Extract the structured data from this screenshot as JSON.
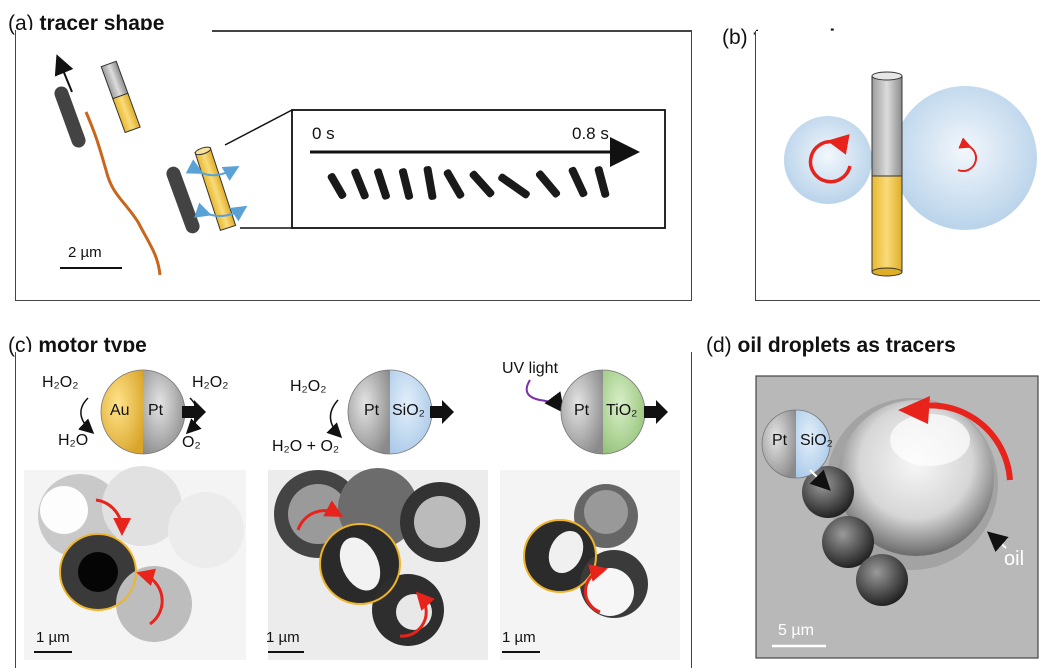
{
  "panel_a": {
    "letter": "(a)",
    "title": "tracer shape",
    "inset": {
      "start_time": "0 s",
      "end_time": "0.8 s"
    },
    "scale_bar": "2 µm"
  },
  "panel_b": {
    "letter": "(b)",
    "title": "tracer size"
  },
  "panel_c": {
    "letter": "(c)",
    "title": "motor type",
    "motor1": {
      "reactant_left": "H₂O₂",
      "product_left": "H₂O",
      "reactant_right": "H₂O₂",
      "product_right": "O₂",
      "half_left": "Au",
      "half_right": "Pt",
      "scale_bar": "1 µm"
    },
    "motor2": {
      "reactant": "H₂O₂",
      "products": "H₂O + O₂",
      "half_left": "Pt",
      "half_right": "SiO₂",
      "scale_bar": "1 µm"
    },
    "motor3": {
      "trigger": "UV light",
      "half_left": "Pt",
      "half_right": "TiO₂",
      "scale_bar": "1 µm"
    }
  },
  "panel_d": {
    "letter": "(d)",
    "title": "oil droplets as tracers",
    "half_left": "Pt",
    "half_right": "SiO₂",
    "oil_label": "oil",
    "scale_bar": "5 µm"
  },
  "colors": {
    "gold": "#f2c94c",
    "platinum_gray": "#9a9a9a",
    "silica_blue": "#b7d3ee",
    "titania_green": "#a8d08d",
    "arrow_red": "#e8231c",
    "trajectory_orange": "#c8661d",
    "rotation_blue": "#5aa2d6",
    "ring_yellow": "#f0b429",
    "uv_purple": "#7b2fa8"
  }
}
